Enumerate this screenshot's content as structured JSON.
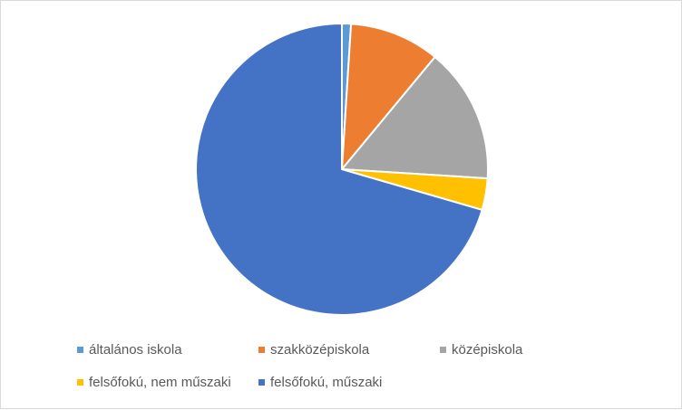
{
  "chart_data": {
    "type": "pie",
    "title": "",
    "legend_position": "bottom",
    "categories": [
      "általános iskola",
      "szakközépiskola",
      "középiskola",
      "felsőfokú, nem műszaki",
      "felsőfokú, műszaki"
    ],
    "values": [
      1,
      10,
      15,
      3.5,
      70.5
    ],
    "colors": [
      "#5b9bd5",
      "#ed7d31",
      "#a5a5a5",
      "#ffc000",
      "#4472c4"
    ],
    "start_angle_deg": 0,
    "direction": "clockwise"
  }
}
